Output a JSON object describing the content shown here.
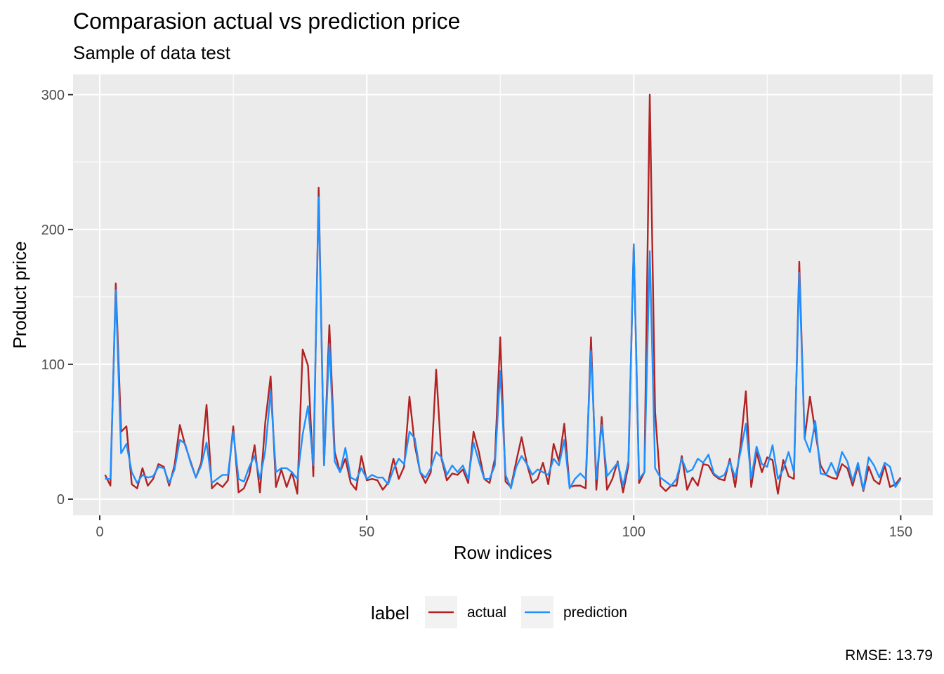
{
  "chart_data": {
    "type": "line",
    "title": "Comparasion actual vs prediction price",
    "subtitle": "Sample of data test",
    "xlabel": "Row indices",
    "ylabel": "Product price",
    "caption": "RMSE: 13.79",
    "xlim": [
      -5,
      156
    ],
    "ylim": [
      -12,
      315
    ],
    "x_ticks": [
      0,
      50,
      100,
      150
    ],
    "y_ticks": [
      0,
      100,
      200,
      300
    ],
    "grid": true,
    "legend": {
      "title": "label",
      "position": "bottom",
      "items": [
        {
          "label": "actual",
          "color": "#b22222"
        },
        {
          "label": "prediction",
          "color": "#1e90ff"
        }
      ]
    },
    "series": [
      {
        "name": "actual",
        "color": "#b22222",
        "values": [
          18,
          10,
          160,
          50,
          54,
          11,
          8,
          23,
          10,
          15,
          26,
          24,
          10,
          25,
          55,
          40,
          28,
          16,
          27,
          70,
          8,
          12,
          9,
          14,
          54,
          5,
          8,
          18,
          40,
          5,
          57,
          91,
          9,
          22,
          9,
          20,
          4,
          111,
          99,
          17,
          231,
          25,
          129,
          35,
          20,
          30,
          12,
          7,
          32,
          14,
          15,
          14,
          7,
          12,
          30,
          15,
          24,
          76,
          40,
          20,
          12,
          20,
          96,
          30,
          14,
          19,
          18,
          22,
          12,
          50,
          35,
          15,
          12,
          30,
          120,
          13,
          9,
          28,
          46,
          26,
          12,
          15,
          27,
          11,
          41,
          28,
          56,
          9,
          10,
          10,
          8,
          120,
          7,
          61,
          7,
          15,
          28,
          5,
          25,
          189,
          12,
          20,
          300,
          65,
          10,
          6,
          10,
          10,
          32,
          7,
          16,
          10,
          26,
          25,
          18,
          15,
          14,
          30,
          9,
          40,
          80,
          9,
          35,
          20,
          31,
          29,
          4,
          29,
          17,
          15,
          176,
          45,
          76,
          50,
          25,
          18,
          16,
          15,
          26,
          23,
          10,
          25,
          6,
          24,
          14,
          11,
          25,
          9,
          11,
          16
        ]
      },
      {
        "name": "prediction",
        "color": "#1e90ff",
        "values": [
          15,
          15,
          155,
          34,
          41,
          20,
          12,
          18,
          16,
          17,
          24,
          23,
          12,
          22,
          44,
          41,
          27,
          16,
          25,
          42,
          12,
          15,
          18,
          18,
          50,
          15,
          13,
          24,
          32,
          15,
          36,
          80,
          20,
          23,
          23,
          20,
          15,
          48,
          69,
          25,
          224,
          25,
          115,
          28,
          20,
          38,
          16,
          14,
          23,
          15,
          18,
          16,
          16,
          11,
          22,
          30,
          26,
          50,
          45,
          20,
          16,
          23,
          35,
          31,
          18,
          25,
          20,
          25,
          15,
          42,
          28,
          15,
          15,
          25,
          95,
          18,
          8,
          24,
          32,
          26,
          18,
          22,
          20,
          18,
          30,
          25,
          44,
          8,
          15,
          19,
          15,
          110,
          15,
          55,
          17,
          22,
          27,
          10,
          28,
          189,
          15,
          20,
          184,
          23,
          16,
          13,
          10,
          15,
          30,
          20,
          22,
          30,
          27,
          33,
          19,
          16,
          18,
          28,
          16,
          35,
          56,
          15,
          39,
          26,
          24,
          40,
          15,
          22,
          35,
          20,
          168,
          45,
          35,
          58,
          19,
          18,
          27,
          18,
          35,
          28,
          13,
          27,
          7,
          31,
          25,
          16,
          27,
          24,
          9,
          15
        ]
      }
    ]
  }
}
